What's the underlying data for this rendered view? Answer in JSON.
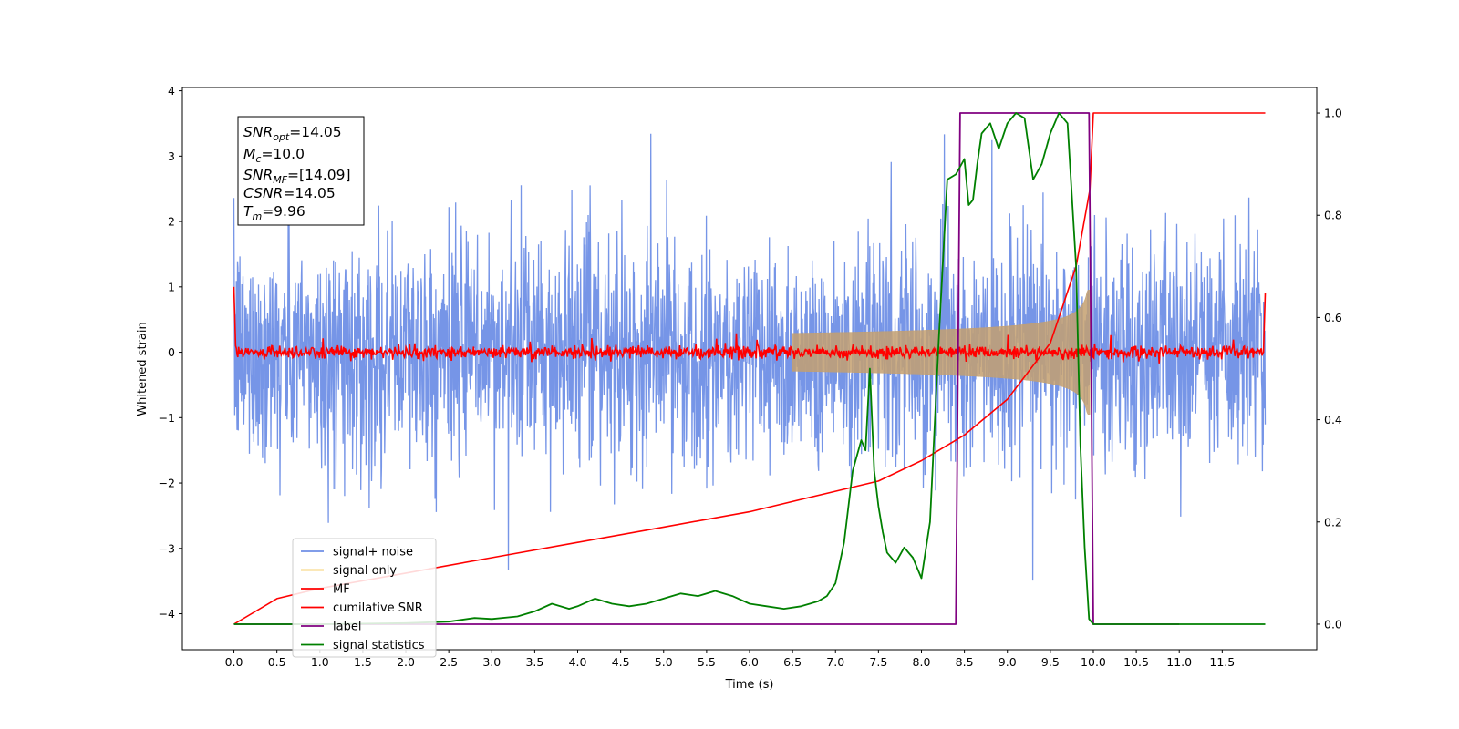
{
  "chart_data": {
    "type": "line",
    "xlabel": "Time (s)",
    "ylabel": "Whitened strain",
    "xlim": [
      -0.6,
      12.6
    ],
    "ylim": [
      -4.55,
      4.05
    ],
    "ylim_right": [
      -0.05,
      1.05
    ],
    "x_ticks": [
      "0.0",
      "0.5",
      "1.0",
      "1.5",
      "2.0",
      "2.5",
      "3.0",
      "3.5",
      "4.0",
      "4.5",
      "5.0",
      "5.5",
      "6.0",
      "6.5",
      "7.0",
      "7.5",
      "8.0",
      "8.5",
      "9.0",
      "9.5",
      "10.0",
      "10.5",
      "11.0",
      "11.5"
    ],
    "y_ticks": [
      "4",
      "3",
      "2",
      "1",
      "0",
      "−1",
      "−2",
      "−3",
      "−4"
    ],
    "y_ticks_right": [
      "1.0",
      "0.8",
      "0.6",
      "0.4",
      "0.2",
      "0.0"
    ],
    "grid": false,
    "legend_position": "lower-left",
    "info_box": {
      "snr_opt": {
        "base": "SNR",
        "sub": "opt",
        "value": "=14.05"
      },
      "mc": {
        "base": "M",
        "sub": "c",
        "value": "=10.0"
      },
      "snr_mf": {
        "base": "SNR",
        "sub": "MF",
        "value": "=[14.09]"
      },
      "csnr": {
        "base": "CSNR",
        "sub": "",
        "value": "=14.05"
      },
      "tm": {
        "base": "T",
        "sub": "m",
        "value": "=9.96"
      }
    },
    "series": [
      {
        "name": "signal+ noise",
        "color": "#6f8fe6",
        "axis": "left",
        "noise_std": 0.85,
        "range": [
          0.0,
          12.0
        ]
      },
      {
        "name": "signal only",
        "color": "#f5c242",
        "axis": "left",
        "chirp_end": 9.96,
        "envelope_at_end": 0.95
      },
      {
        "name": "MF",
        "color": "#ff0000",
        "axis": "left",
        "values": {
          "x": [
            0.0,
            0.02,
            12.0
          ],
          "y": [
            1.0,
            0.0,
            0.9
          ]
        }
      },
      {
        "name": "cumilative SNR",
        "color": "#ff0000",
        "axis": "right",
        "x": [
          0.0,
          0.5,
          1.0,
          2.0,
          3.0,
          4.0,
          5.0,
          6.0,
          7.0,
          7.5,
          8.0,
          8.5,
          9.0,
          9.5,
          9.8,
          9.96,
          10.0,
          12.0
        ],
        "y": [
          0.0,
          0.05,
          0.07,
          0.1,
          0.13,
          0.16,
          0.19,
          0.22,
          0.26,
          0.28,
          0.32,
          0.37,
          0.44,
          0.55,
          0.7,
          0.85,
          1.0,
          1.0
        ]
      },
      {
        "name": "label",
        "color": "#800080",
        "axis": "right",
        "x": [
          0.0,
          8.4,
          8.45,
          9.95,
          10.0,
          11.0
        ],
        "y": [
          0.0,
          0.0,
          1.0,
          1.0,
          0.0,
          0.0
        ]
      },
      {
        "name": "signal statistics",
        "color": "#008000",
        "axis": "right",
        "x": [
          0.0,
          1.0,
          2.0,
          2.5,
          2.8,
          3.0,
          3.3,
          3.5,
          3.7,
          3.9,
          4.0,
          4.2,
          4.4,
          4.6,
          4.8,
          5.0,
          5.2,
          5.4,
          5.6,
          5.8,
          6.0,
          6.2,
          6.4,
          6.6,
          6.8,
          6.9,
          7.0,
          7.1,
          7.2,
          7.3,
          7.35,
          7.4,
          7.45,
          7.5,
          7.55,
          7.6,
          7.7,
          7.8,
          7.9,
          8.0,
          8.1,
          8.2,
          8.3,
          8.4,
          8.5,
          8.55,
          8.6,
          8.65,
          8.7,
          8.8,
          8.9,
          9.0,
          9.1,
          9.2,
          9.3,
          9.4,
          9.5,
          9.6,
          9.7,
          9.8,
          9.85,
          9.9,
          9.95,
          10.0,
          10.05,
          11.0,
          12.0
        ],
        "y": [
          0.0,
          0.0,
          0.002,
          0.005,
          0.012,
          0.01,
          0.015,
          0.025,
          0.04,
          0.03,
          0.035,
          0.05,
          0.04,
          0.035,
          0.04,
          0.05,
          0.06,
          0.055,
          0.065,
          0.055,
          0.04,
          0.035,
          0.03,
          0.035,
          0.045,
          0.055,
          0.08,
          0.16,
          0.3,
          0.36,
          0.34,
          0.5,
          0.3,
          0.23,
          0.18,
          0.14,
          0.12,
          0.15,
          0.13,
          0.09,
          0.2,
          0.55,
          0.87,
          0.88,
          0.91,
          0.82,
          0.83,
          0.9,
          0.96,
          0.98,
          0.93,
          0.98,
          1.0,
          0.99,
          0.87,
          0.9,
          0.96,
          1.0,
          0.98,
          0.7,
          0.35,
          0.15,
          0.01,
          0.0,
          0.0,
          0.0,
          0.0
        ]
      }
    ]
  }
}
